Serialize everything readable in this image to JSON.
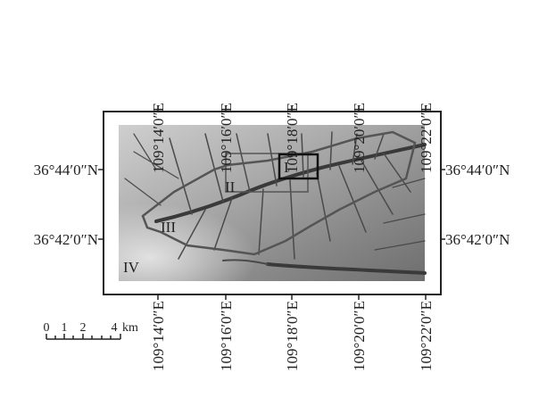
{
  "map": {
    "top_labels": [
      "109°14′0″E",
      "109°16′0″E",
      "109°18′0″E",
      "109°20′0″E",
      "109°22′0″E"
    ],
    "bottom_labels": [
      "109°14′0″E",
      "109°16′0″E",
      "109°18′0″E",
      "109°20′0″E",
      "109°22′0″E"
    ],
    "left_labels": [
      "36°44′0″N",
      "36°42′0″N"
    ],
    "right_labels": [
      "36°44′0″N",
      "36°42′0″N"
    ],
    "regions": [
      "I",
      "II",
      "III",
      "IV"
    ],
    "scale": {
      "ticks": [
        "0",
        "1",
        "2",
        "4"
      ],
      "unit": "km"
    }
  }
}
